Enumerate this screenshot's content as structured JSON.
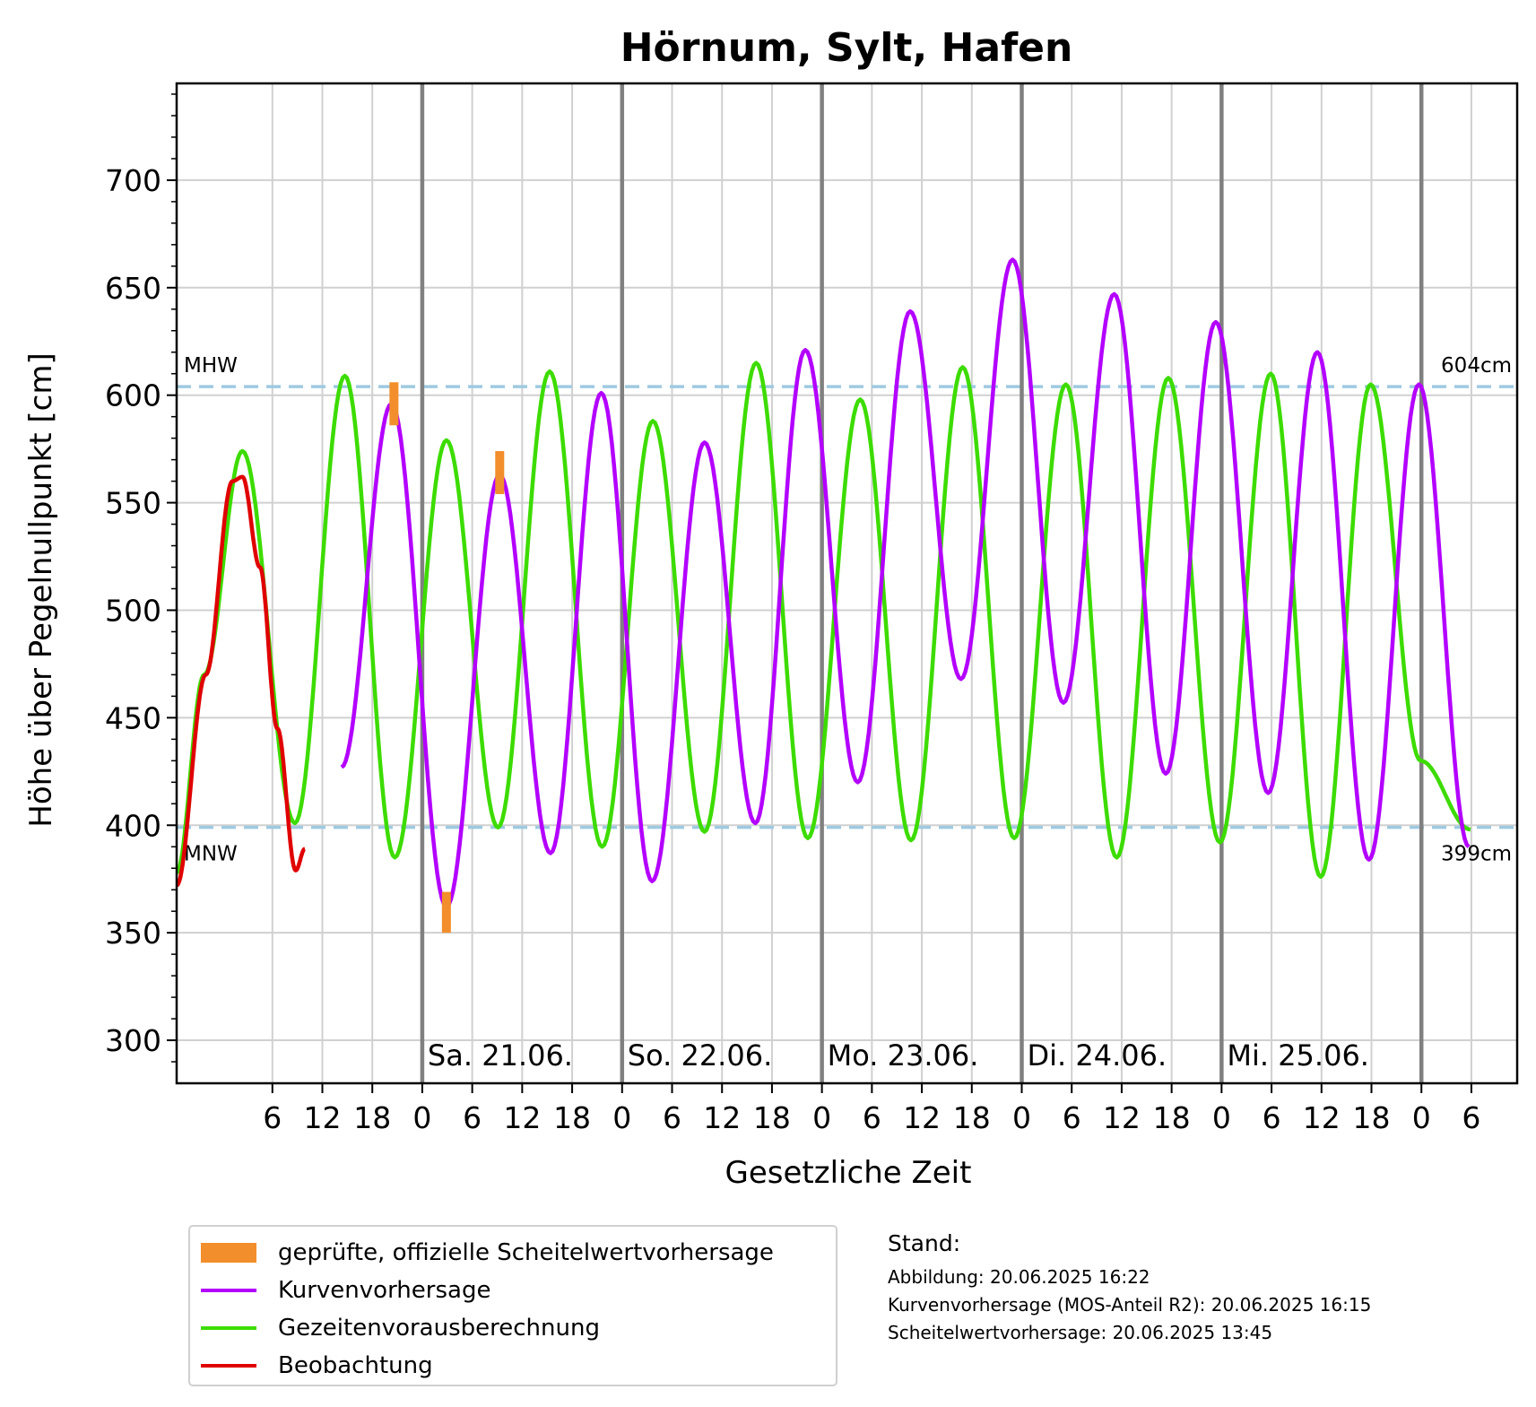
{
  "chart_data": {
    "type": "line",
    "title": "Hörnum, Sylt, Hafen",
    "xlabel": "Gesetzliche Zeit",
    "ylabel": "Höhe über Pegelnullpunkt [cm]",
    "x_unit": "hours from 20.06. 00:00",
    "xlim": [
      -5.5,
      155.5
    ],
    "ylim": [
      280,
      745
    ],
    "yticks": [
      300,
      350,
      400,
      450,
      500,
      550,
      600,
      650,
      700
    ],
    "xticks": [
      {
        "x": 6,
        "label": "6"
      },
      {
        "x": 12,
        "label": "12"
      },
      {
        "x": 18,
        "label": "18"
      },
      {
        "x": 24,
        "label": "0"
      },
      {
        "x": 30,
        "label": "6"
      },
      {
        "x": 36,
        "label": "12"
      },
      {
        "x": 42,
        "label": "18"
      },
      {
        "x": 48,
        "label": "0"
      },
      {
        "x": 54,
        "label": "6"
      },
      {
        "x": 60,
        "label": "12"
      },
      {
        "x": 66,
        "label": "18"
      },
      {
        "x": 72,
        "label": "0"
      },
      {
        "x": 78,
        "label": "6"
      },
      {
        "x": 84,
        "label": "12"
      },
      {
        "x": 90,
        "label": "18"
      },
      {
        "x": 96,
        "label": "0"
      },
      {
        "x": 102,
        "label": "6"
      },
      {
        "x": 108,
        "label": "12"
      },
      {
        "x": 114,
        "label": "18"
      },
      {
        "x": 120,
        "label": "0"
      },
      {
        "x": 126,
        "label": "6"
      },
      {
        "x": 132,
        "label": "12"
      },
      {
        "x": 138,
        "label": "18"
      },
      {
        "x": 144,
        "label": "0"
      },
      {
        "x": 150,
        "label": "6"
      }
    ],
    "day_lines": [
      24,
      48,
      72,
      96,
      120,
      144
    ],
    "day_labels": [
      {
        "x": 24,
        "label": "Sa. 21.06."
      },
      {
        "x": 48,
        "label": "So. 22.06."
      },
      {
        "x": 72,
        "label": "Mo. 23.06."
      },
      {
        "x": 96,
        "label": "Di. 24.06."
      },
      {
        "x": 120,
        "label": "Mi. 25.06."
      }
    ],
    "reference_lines": [
      {
        "name": "MHW",
        "value": 604,
        "label": "604cm",
        "color": "#9ecae1"
      },
      {
        "name": "MNW",
        "value": 399,
        "label": "399cm",
        "color": "#9ecae1"
      }
    ],
    "grid": true,
    "series": [
      {
        "name": "geprüfte, offizielle Scheitelwertvorhersage",
        "kind": "bars",
        "color": "#f28e2b",
        "points": [
          {
            "x": 20.6,
            "y0": 586,
            "y1": 606
          },
          {
            "x": 26.9,
            "y0": 350,
            "y1": 369
          },
          {
            "x": 33.3,
            "y0": 554,
            "y1": 574
          }
        ]
      },
      {
        "name": "Kurvenvorhersage",
        "kind": "line",
        "color": "#b300ff",
        "points": [
          [
            14.3,
            427
          ],
          [
            20.3,
            596
          ],
          [
            26.9,
            362
          ],
          [
            33.3,
            563
          ],
          [
            39.4,
            387
          ],
          [
            45.5,
            601
          ],
          [
            51.6,
            374
          ],
          [
            57.9,
            578
          ],
          [
            64.0,
            401
          ],
          [
            70.0,
            621
          ],
          [
            76.3,
            420
          ],
          [
            82.6,
            639
          ],
          [
            88.7,
            468
          ],
          [
            94.9,
            663
          ],
          [
            101.0,
            457
          ],
          [
            107.1,
            647
          ],
          [
            113.3,
            424
          ],
          [
            119.3,
            634
          ],
          [
            125.6,
            415
          ],
          [
            131.5,
            620
          ],
          [
            137.7,
            384
          ],
          [
            143.7,
            605
          ],
          [
            149.7,
            390
          ]
        ]
      },
      {
        "name": "Gezeitenvorausberechnung",
        "kind": "line",
        "color": "#3ddc00",
        "points": [
          [
            -5.5,
            378
          ],
          [
            -2.2,
            470
          ],
          [
            2.4,
            574
          ],
          [
            8.7,
            401
          ],
          [
            14.7,
            609
          ],
          [
            20.7,
            385
          ],
          [
            26.9,
            579
          ],
          [
            33.1,
            399
          ],
          [
            39.3,
            611
          ],
          [
            45.6,
            390
          ],
          [
            51.7,
            588
          ],
          [
            57.9,
            397
          ],
          [
            64.1,
            615
          ],
          [
            70.3,
            394
          ],
          [
            76.6,
            598
          ],
          [
            82.7,
            393
          ],
          [
            88.9,
            613
          ],
          [
            95.1,
            394
          ],
          [
            101.3,
            605
          ],
          [
            107.4,
            385
          ],
          [
            113.6,
            608
          ],
          [
            119.8,
            392
          ],
          [
            125.9,
            610
          ],
          [
            131.9,
            376
          ],
          [
            137.9,
            605
          ],
          [
            143.9,
            430
          ],
          [
            149.9,
            398
          ]
        ]
      },
      {
        "name": "Beobachtung",
        "kind": "line",
        "color": "#e00000",
        "points": [
          [
            -5.5,
            372
          ],
          [
            -2.0,
            470
          ],
          [
            1.2,
            560
          ],
          [
            2.4,
            562
          ],
          [
            4.5,
            520
          ],
          [
            6.6,
            445
          ],
          [
            8.8,
            379
          ],
          [
            9.9,
            389
          ]
        ]
      }
    ]
  },
  "legend": {
    "items": [
      {
        "label": "geprüfte, offizielle Scheitelwertvorhersage",
        "color": "#f28e2b",
        "swatch": "box"
      },
      {
        "label": "Kurvenvorhersage",
        "color": "#b300ff",
        "swatch": "line"
      },
      {
        "label": "Gezeitenvorausberechnung",
        "color": "#3ddc00",
        "swatch": "line"
      },
      {
        "label": "Beobachtung",
        "color": "#e00000",
        "swatch": "line"
      }
    ]
  },
  "stand": {
    "heading": "Stand:",
    "lines": [
      "Abbildung: 20.06.2025 16:22",
      "Kurvenvorhersage (MOS-Anteil R2): 20.06.2025 16:15",
      "Scheitelwertvorhersage: 20.06.2025 13:45"
    ]
  }
}
